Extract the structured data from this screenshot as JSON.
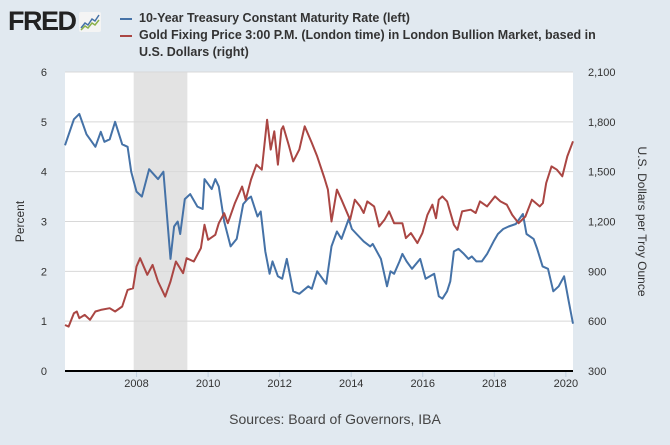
{
  "logo": {
    "text": "FRED"
  },
  "colors": {
    "treasury": "#4572a7",
    "gold": "#aa4643",
    "recession": "#e3e3e3",
    "background": "#e1e9f0",
    "grid": "#d8d8d8"
  },
  "source": "Sources: Board of Governors, IBA",
  "chart_data": {
    "type": "line",
    "title": "",
    "ylabel": "Percent",
    "ylabel_right": "U.S. Dollars per Troy Ounce",
    "xlim": [
      2006.0,
      2020.2
    ],
    "ylim": [
      0,
      6
    ],
    "ylim_right": [
      300,
      2100
    ],
    "x_ticks": [
      "2008",
      "2010",
      "2012",
      "2014",
      "2016",
      "2018",
      "2020"
    ],
    "y_ticks": [
      "0",
      "1",
      "2",
      "3",
      "4",
      "5",
      "6"
    ],
    "y_ticks_right": [
      "300",
      "600",
      "900",
      "1,200",
      "1,500",
      "1,800",
      "2,100"
    ],
    "grid": true,
    "legend_position": "top",
    "recession_shading": [
      [
        2007.92,
        2009.42
      ]
    ],
    "series": [
      {
        "name": "10-Year Treasury Constant Maturity Rate (left)",
        "axis": "left",
        "x": [
          2006.0,
          2006.25,
          2006.4,
          2006.6,
          2006.85,
          2007.0,
          2007.1,
          2007.25,
          2007.4,
          2007.6,
          2007.75,
          2007.85,
          2008.0,
          2008.15,
          2008.35,
          2008.6,
          2008.75,
          2008.95,
          2009.05,
          2009.15,
          2009.22,
          2009.35,
          2009.5,
          2009.7,
          2009.85,
          2009.9,
          2010.1,
          2010.2,
          2010.3,
          2010.45,
          2010.63,
          2010.8,
          2010.98,
          2011.1,
          2011.2,
          2011.38,
          2011.47,
          2011.6,
          2011.72,
          2011.8,
          2011.95,
          2012.07,
          2012.2,
          2012.38,
          2012.55,
          2012.8,
          2012.9,
          2013.05,
          2013.15,
          2013.3,
          2013.45,
          2013.6,
          2013.73,
          2013.93,
          2014.02,
          2014.15,
          2014.35,
          2014.53,
          2014.6,
          2014.83,
          2015.0,
          2015.1,
          2015.2,
          2015.35,
          2015.43,
          2015.55,
          2015.7,
          2015.93,
          2016.08,
          2016.32,
          2016.45,
          2016.55,
          2016.68,
          2016.77,
          2016.87,
          2017.0,
          2017.15,
          2017.28,
          2017.37,
          2017.5,
          2017.65,
          2017.8,
          2017.98,
          2018.1,
          2018.25,
          2018.4,
          2018.6,
          2018.8,
          2018.9,
          2019.1,
          2019.2,
          2019.35,
          2019.5,
          2019.65,
          2019.8,
          2019.95,
          2020.08,
          2020.2
        ],
        "values": [
          4.53,
          5.05,
          5.16,
          4.75,
          4.5,
          4.8,
          4.6,
          4.65,
          5.0,
          4.55,
          4.5,
          4.0,
          3.6,
          3.5,
          4.05,
          3.85,
          4.0,
          2.25,
          2.9,
          3.0,
          2.75,
          3.45,
          3.55,
          3.3,
          3.25,
          3.85,
          3.65,
          3.85,
          3.7,
          3.0,
          2.5,
          2.65,
          3.35,
          3.45,
          3.5,
          3.1,
          3.2,
          2.4,
          1.95,
          2.2,
          1.9,
          1.85,
          2.25,
          1.6,
          1.55,
          1.7,
          1.65,
          2.0,
          1.9,
          1.75,
          2.5,
          2.8,
          2.65,
          3.05,
          2.85,
          2.75,
          2.6,
          2.5,
          2.55,
          2.25,
          1.7,
          2.0,
          1.95,
          2.2,
          2.35,
          2.2,
          2.05,
          2.25,
          1.85,
          1.95,
          1.5,
          1.45,
          1.6,
          1.8,
          2.4,
          2.45,
          2.35,
          2.25,
          2.3,
          2.2,
          2.2,
          2.35,
          2.6,
          2.75,
          2.85,
          2.9,
          2.95,
          3.15,
          2.75,
          2.65,
          2.45,
          2.1,
          2.05,
          1.6,
          1.7,
          1.9,
          1.4,
          0.95
        ]
      },
      {
        "name": "Gold Fixing Price 3:00 P.M. (London time) in London Bullion Market, based in U.S. Dollars (right)",
        "axis": "right",
        "x": [
          2006.0,
          2006.1,
          2006.25,
          2006.33,
          2006.4,
          2006.55,
          2006.7,
          2006.85,
          2007.0,
          2007.25,
          2007.4,
          2007.6,
          2007.75,
          2007.9,
          2008.0,
          2008.1,
          2008.3,
          2008.45,
          2008.6,
          2008.8,
          2008.95,
          2009.1,
          2009.3,
          2009.4,
          2009.6,
          2009.8,
          2009.9,
          2010.0,
          2010.2,
          2010.3,
          2010.45,
          2010.55,
          2010.75,
          2010.95,
          2011.05,
          2011.2,
          2011.35,
          2011.5,
          2011.65,
          2011.75,
          2011.85,
          2011.95,
          2012.05,
          2012.1,
          2012.25,
          2012.38,
          2012.55,
          2012.7,
          2012.9,
          2013.05,
          2013.25,
          2013.35,
          2013.45,
          2013.6,
          2013.73,
          2013.97,
          2014.1,
          2014.25,
          2014.35,
          2014.45,
          2014.64,
          2014.78,
          2014.93,
          2015.06,
          2015.2,
          2015.43,
          2015.53,
          2015.67,
          2015.85,
          2015.99,
          2016.13,
          2016.27,
          2016.37,
          2016.45,
          2016.55,
          2016.68,
          2016.87,
          2016.97,
          2017.1,
          2017.34,
          2017.48,
          2017.6,
          2017.8,
          2018.02,
          2018.17,
          2018.35,
          2018.5,
          2018.68,
          2018.87,
          2019.05,
          2019.27,
          2019.36,
          2019.45,
          2019.6,
          2019.75,
          2019.9,
          2020.04,
          2020.2
        ],
        "values": [
          577,
          567,
          648,
          658,
          618,
          638,
          608,
          658,
          668,
          678,
          658,
          688,
          788,
          798,
          929,
          979,
          879,
          939,
          839,
          748,
          839,
          959,
          889,
          979,
          959,
          1040,
          1180,
          1090,
          1120,
          1190,
          1250,
          1190,
          1311,
          1411,
          1331,
          1452,
          1542,
          1512,
          1813,
          1633,
          1743,
          1542,
          1753,
          1773,
          1663,
          1562,
          1633,
          1773,
          1673,
          1592,
          1462,
          1392,
          1200,
          1392,
          1331,
          1210,
          1331,
          1291,
          1251,
          1321,
          1291,
          1170,
          1210,
          1261,
          1190,
          1190,
          1100,
          1130,
          1070,
          1130,
          1240,
          1301,
          1220,
          1331,
          1351,
          1321,
          1180,
          1150,
          1261,
          1271,
          1251,
          1321,
          1291,
          1351,
          1321,
          1301,
          1240,
          1190,
          1230,
          1331,
          1291,
          1311,
          1432,
          1532,
          1512,
          1472,
          1592,
          1683
        ]
      }
    ]
  }
}
